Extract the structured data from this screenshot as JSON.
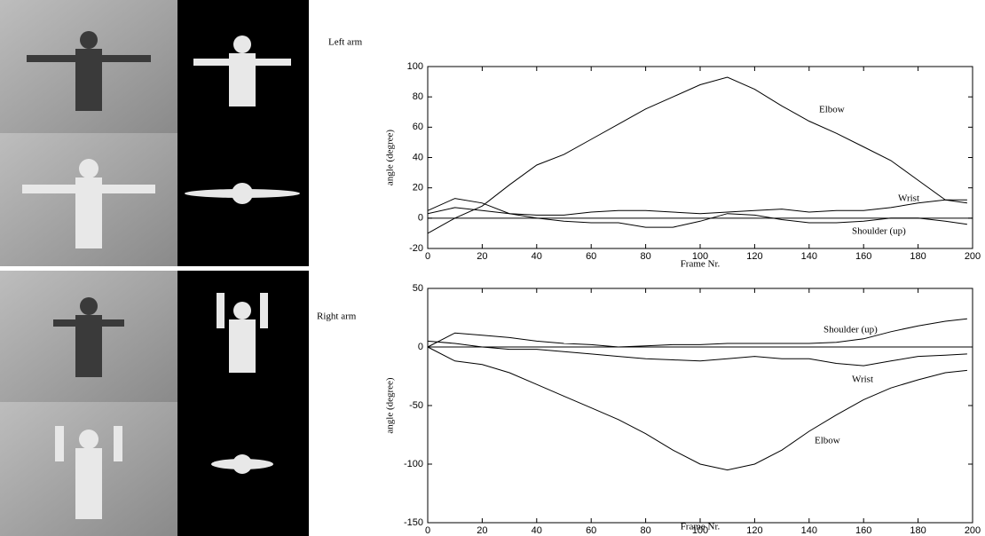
{
  "chart_data": [
    {
      "type": "line",
      "title": "Left arm",
      "xlabel": "Frame Nr.",
      "ylabel": "angle (degree)",
      "x": [
        0,
        10,
        20,
        30,
        40,
        50,
        60,
        70,
        80,
        90,
        100,
        110,
        120,
        130,
        140,
        150,
        160,
        170,
        180,
        190,
        198
      ],
      "series": [
        {
          "name": "Elbow",
          "color": "#000000",
          "values": [
            -10,
            0,
            8,
            22,
            35,
            42,
            52,
            62,
            72,
            80,
            88,
            93,
            85,
            74,
            64,
            56,
            47,
            38,
            25,
            12,
            10
          ]
        },
        {
          "name": "Wrist",
          "color": "#000000",
          "values": [
            5,
            13,
            10,
            3,
            2,
            2,
            4,
            5,
            5,
            4,
            3,
            4,
            5,
            6,
            4,
            5,
            5,
            7,
            10,
            12,
            12
          ]
        },
        {
          "name": "Shoulder (up)",
          "color": "#000000",
          "values": [
            3,
            7,
            5,
            3,
            0,
            -2,
            -3,
            -3,
            -6,
            -6,
            -2,
            3,
            2,
            -1,
            -3,
            -3,
            -2,
            0,
            0,
            -2,
            -4
          ]
        }
      ],
      "xlim": [
        0,
        200
      ],
      "xticks": [
        0,
        20,
        40,
        60,
        80,
        100,
        120,
        140,
        160,
        180,
        200
      ],
      "ylim": [
        -20,
        100
      ],
      "yticks": [
        -20,
        0,
        20,
        40,
        60,
        80,
        100
      ]
    },
    {
      "type": "line",
      "title": "Right arm",
      "xlabel": "Frame Nr.",
      "ylabel": "angle (degree)",
      "x": [
        0,
        10,
        20,
        30,
        40,
        50,
        60,
        70,
        80,
        90,
        100,
        110,
        120,
        130,
        140,
        150,
        160,
        170,
        180,
        190,
        198
      ],
      "series": [
        {
          "name": "Shoulder (up)",
          "color": "#000000",
          "values": [
            0,
            12,
            10,
            8,
            5,
            3,
            2,
            0,
            1,
            2,
            2,
            3,
            3,
            3,
            3,
            4,
            7,
            13,
            18,
            22,
            24
          ]
        },
        {
          "name": "Wrist",
          "color": "#000000",
          "values": [
            5,
            3,
            0,
            -2,
            -2,
            -4,
            -6,
            -8,
            -10,
            -11,
            -12,
            -10,
            -8,
            -10,
            -10,
            -14,
            -16,
            -12,
            -8,
            -7,
            -6
          ]
        },
        {
          "name": "Elbow",
          "color": "#000000",
          "values": [
            0,
            -12,
            -15,
            -22,
            -32,
            -42,
            -52,
            -62,
            -74,
            -88,
            -100,
            -105,
            -100,
            -88,
            -72,
            -58,
            -45,
            -35,
            -28,
            -22,
            -20
          ]
        }
      ],
      "xlim": [
        0,
        200
      ],
      "xticks": [
        0,
        20,
        40,
        60,
        80,
        100,
        120,
        140,
        160,
        180,
        200
      ],
      "ylim": [
        -150,
        50
      ],
      "yticks": [
        -150,
        -100,
        -50,
        0,
        50
      ]
    }
  ]
}
